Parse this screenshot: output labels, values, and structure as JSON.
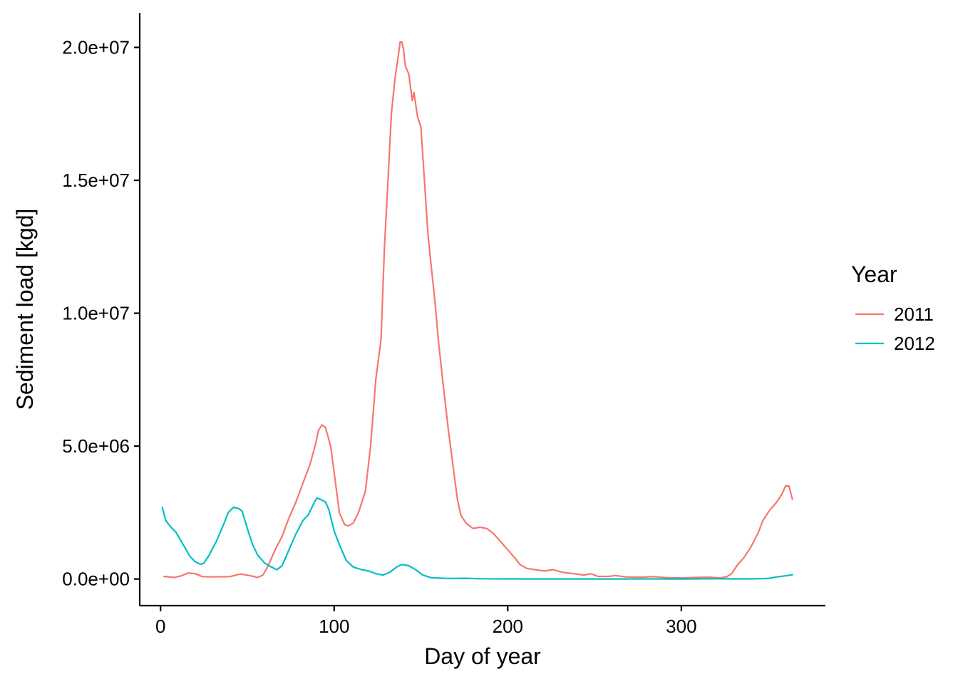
{
  "chart_data": {
    "type": "line",
    "xlabel": "Day of year",
    "ylabel": "Sediment load [kgd]",
    "xlim": [
      -12,
      383
    ],
    "ylim": [
      -1000000,
      21300000
    ],
    "x_ticks": [
      0,
      100,
      200,
      300
    ],
    "x_tick_labels": [
      "0",
      "100",
      "200",
      "300"
    ],
    "y_ticks": [
      0,
      5000000,
      10000000,
      15000000,
      20000000
    ],
    "y_tick_labels": [
      "0.0e+00",
      "5.0e+06",
      "1.0e+07",
      "1.5e+07",
      "2.0e+07"
    ],
    "grid": false,
    "legend": {
      "title": "Year",
      "position": "right"
    },
    "series": [
      {
        "name": "2011",
        "color": "#F8766D",
        "points": [
          [
            2,
            100000
          ],
          [
            8,
            60000
          ],
          [
            12,
            120000
          ],
          [
            16,
            230000
          ],
          [
            20,
            200000
          ],
          [
            24,
            90000
          ],
          [
            30,
            80000
          ],
          [
            40,
            90000
          ],
          [
            46,
            190000
          ],
          [
            52,
            120000
          ],
          [
            56,
            60000
          ],
          [
            59,
            150000
          ],
          [
            62,
            500000
          ],
          [
            66,
            1100000
          ],
          [
            70,
            1600000
          ],
          [
            74,
            2300000
          ],
          [
            78,
            2900000
          ],
          [
            82,
            3600000
          ],
          [
            86,
            4300000
          ],
          [
            89,
            5000000
          ],
          [
            91,
            5600000
          ],
          [
            93,
            5800000
          ],
          [
            95,
            5700000
          ],
          [
            98,
            5000000
          ],
          [
            100,
            4000000
          ],
          [
            103,
            2500000
          ],
          [
            106,
            2050000
          ],
          [
            108,
            2000000
          ],
          [
            111,
            2100000
          ],
          [
            114,
            2500000
          ],
          [
            118,
            3300000
          ],
          [
            121,
            5000000
          ],
          [
            124,
            7500000
          ],
          [
            127,
            9000000
          ],
          [
            129,
            12500000
          ],
          [
            131,
            15000000
          ],
          [
            133,
            17500000
          ],
          [
            135,
            18800000
          ],
          [
            137,
            19700000
          ],
          [
            138,
            20200000
          ],
          [
            139,
            20200000
          ],
          [
            140,
            19900000
          ],
          [
            141,
            19300000
          ],
          [
            143,
            19000000
          ],
          [
            145,
            18000000
          ],
          [
            146,
            18300000
          ],
          [
            148,
            17400000
          ],
          [
            150,
            17000000
          ],
          [
            152,
            15000000
          ],
          [
            154,
            13000000
          ],
          [
            156,
            11700000
          ],
          [
            158,
            10500000
          ],
          [
            160,
            9000000
          ],
          [
            163,
            7200000
          ],
          [
            166,
            5500000
          ],
          [
            169,
            4000000
          ],
          [
            171,
            3000000
          ],
          [
            173,
            2400000
          ],
          [
            176,
            2100000
          ],
          [
            180,
            1900000
          ],
          [
            184,
            1950000
          ],
          [
            188,
            1900000
          ],
          [
            192,
            1700000
          ],
          [
            196,
            1400000
          ],
          [
            200,
            1100000
          ],
          [
            204,
            800000
          ],
          [
            207,
            550000
          ],
          [
            211,
            400000
          ],
          [
            216,
            350000
          ],
          [
            221,
            300000
          ],
          [
            226,
            350000
          ],
          [
            232,
            250000
          ],
          [
            238,
            200000
          ],
          [
            244,
            150000
          ],
          [
            248,
            200000
          ],
          [
            252,
            100000
          ],
          [
            258,
            100000
          ],
          [
            262,
            130000
          ],
          [
            268,
            80000
          ],
          [
            276,
            70000
          ],
          [
            284,
            90000
          ],
          [
            292,
            50000
          ],
          [
            300,
            40000
          ],
          [
            308,
            60000
          ],
          [
            316,
            70000
          ],
          [
            322,
            40000
          ],
          [
            326,
            80000
          ],
          [
            329,
            200000
          ],
          [
            332,
            500000
          ],
          [
            336,
            800000
          ],
          [
            340,
            1200000
          ],
          [
            344,
            1700000
          ],
          [
            347,
            2200000
          ],
          [
            351,
            2600000
          ],
          [
            355,
            2900000
          ],
          [
            358,
            3200000
          ],
          [
            360,
            3500000
          ],
          [
            362,
            3500000
          ],
          [
            364,
            3000000
          ]
        ]
      },
      {
        "name": "2012",
        "color": "#00BFC4",
        "points": [
          [
            1,
            2700000
          ],
          [
            3,
            2200000
          ],
          [
            6,
            1950000
          ],
          [
            9,
            1750000
          ],
          [
            13,
            1300000
          ],
          [
            17,
            850000
          ],
          [
            20,
            650000
          ],
          [
            23,
            550000
          ],
          [
            25,
            600000
          ],
          [
            28,
            900000
          ],
          [
            32,
            1400000
          ],
          [
            36,
            2000000
          ],
          [
            39,
            2500000
          ],
          [
            42,
            2700000
          ],
          [
            45,
            2650000
          ],
          [
            47,
            2550000
          ],
          [
            50,
            1900000
          ],
          [
            53,
            1300000
          ],
          [
            56,
            900000
          ],
          [
            60,
            600000
          ],
          [
            64,
            450000
          ],
          [
            67,
            350000
          ],
          [
            70,
            500000
          ],
          [
            74,
            1100000
          ],
          [
            78,
            1700000
          ],
          [
            82,
            2200000
          ],
          [
            85,
            2400000
          ],
          [
            88,
            2800000
          ],
          [
            90,
            3050000
          ],
          [
            92,
            3000000
          ],
          [
            95,
            2900000
          ],
          [
            97,
            2600000
          ],
          [
            100,
            1800000
          ],
          [
            103,
            1300000
          ],
          [
            107,
            700000
          ],
          [
            111,
            450000
          ],
          [
            116,
            350000
          ],
          [
            120,
            300000
          ],
          [
            124,
            200000
          ],
          [
            128,
            150000
          ],
          [
            132,
            250000
          ],
          [
            136,
            450000
          ],
          [
            139,
            550000
          ],
          [
            143,
            500000
          ],
          [
            147,
            350000
          ],
          [
            151,
            150000
          ],
          [
            156,
            50000
          ],
          [
            165,
            20000
          ],
          [
            175,
            30000
          ],
          [
            185,
            10000
          ],
          [
            200,
            5000
          ],
          [
            220,
            3000
          ],
          [
            250,
            3000
          ],
          [
            280,
            5000
          ],
          [
            300,
            3000
          ],
          [
            320,
            10000
          ],
          [
            340,
            5000
          ],
          [
            350,
            20000
          ],
          [
            355,
            80000
          ],
          [
            360,
            120000
          ],
          [
            364,
            160000
          ]
        ]
      }
    ]
  }
}
